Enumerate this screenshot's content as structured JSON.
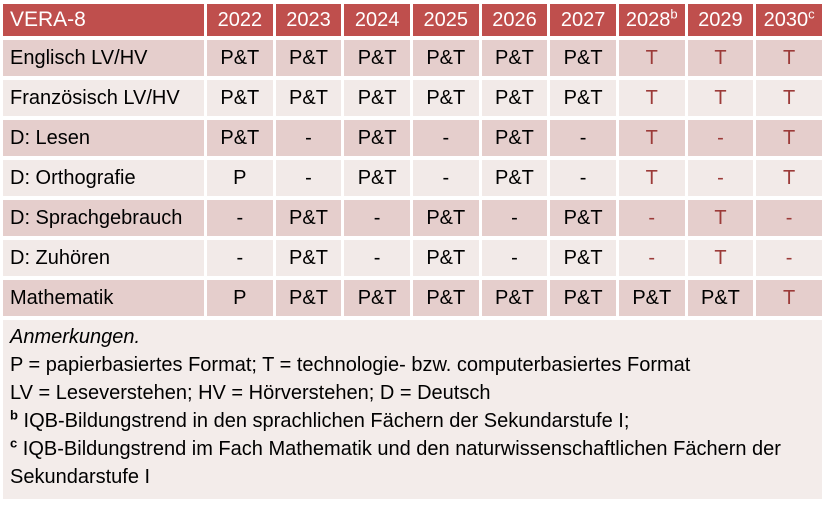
{
  "colors": {
    "header_bg": "#BF4F4D",
    "header_text": "#FFFFFF",
    "row_dark_bg": "#E5CECC",
    "row_light_bg": "#F2EAE8",
    "notes_bg": "#F3ECEA",
    "cell_text": "#000000",
    "tech_format_red": "#9C3B39"
  },
  "table": {
    "title": "VERA-8",
    "columns": [
      {
        "label": "2022",
        "sup": ""
      },
      {
        "label": "2023",
        "sup": ""
      },
      {
        "label": "2024",
        "sup": ""
      },
      {
        "label": "2025",
        "sup": ""
      },
      {
        "label": "2026",
        "sup": ""
      },
      {
        "label": "2027",
        "sup": ""
      },
      {
        "label": "2028",
        "sup": "b"
      },
      {
        "label": "2029",
        "sup": ""
      },
      {
        "label": "2030",
        "sup": "c"
      }
    ],
    "rows": [
      {
        "label": "Englisch LV/HV",
        "cells": [
          {
            "v": "P&T",
            "s": "std"
          },
          {
            "v": "P&T",
            "s": "std"
          },
          {
            "v": "P&T",
            "s": "std"
          },
          {
            "v": "P&T",
            "s": "std"
          },
          {
            "v": "P&T",
            "s": "std"
          },
          {
            "v": "P&T",
            "s": "std"
          },
          {
            "v": "T",
            "s": "tech"
          },
          {
            "v": "T",
            "s": "tech"
          },
          {
            "v": "T",
            "s": "tech"
          }
        ]
      },
      {
        "label": "Französisch LV/HV",
        "cells": [
          {
            "v": "P&T",
            "s": "std"
          },
          {
            "v": "P&T",
            "s": "std"
          },
          {
            "v": "P&T",
            "s": "std"
          },
          {
            "v": "P&T",
            "s": "std"
          },
          {
            "v": "P&T",
            "s": "std"
          },
          {
            "v": "P&T",
            "s": "std"
          },
          {
            "v": "T",
            "s": "tech"
          },
          {
            "v": "T",
            "s": "tech"
          },
          {
            "v": "T",
            "s": "tech"
          }
        ]
      },
      {
        "label": "D: Lesen",
        "cells": [
          {
            "v": "P&T",
            "s": "std"
          },
          {
            "v": "-",
            "s": "std"
          },
          {
            "v": "P&T",
            "s": "std"
          },
          {
            "v": "-",
            "s": "std"
          },
          {
            "v": "P&T",
            "s": "std"
          },
          {
            "v": "-",
            "s": "std"
          },
          {
            "v": "T",
            "s": "tech"
          },
          {
            "v": "-",
            "s": "tech"
          },
          {
            "v": "T",
            "s": "tech"
          }
        ]
      },
      {
        "label": "D: Orthografie",
        "cells": [
          {
            "v": "P",
            "s": "std"
          },
          {
            "v": "-",
            "s": "std"
          },
          {
            "v": "P&T",
            "s": "std"
          },
          {
            "v": "-",
            "s": "std"
          },
          {
            "v": "P&T",
            "s": "std"
          },
          {
            "v": "-",
            "s": "std"
          },
          {
            "v": "T",
            "s": "tech"
          },
          {
            "v": "-",
            "s": "tech"
          },
          {
            "v": "T",
            "s": "tech"
          }
        ]
      },
      {
        "label": "D: Sprachgebrauch",
        "cells": [
          {
            "v": "-",
            "s": "std"
          },
          {
            "v": "P&T",
            "s": "std"
          },
          {
            "v": "-",
            "s": "std"
          },
          {
            "v": "P&T",
            "s": "std"
          },
          {
            "v": "-",
            "s": "std"
          },
          {
            "v": "P&T",
            "s": "std"
          },
          {
            "v": "-",
            "s": "tech"
          },
          {
            "v": "T",
            "s": "tech"
          },
          {
            "v": "-",
            "s": "tech"
          }
        ]
      },
      {
        "label": "D: Zuhören",
        "cells": [
          {
            "v": "-",
            "s": "std"
          },
          {
            "v": "P&T",
            "s": "std"
          },
          {
            "v": "-",
            "s": "std"
          },
          {
            "v": "P&T",
            "s": "std"
          },
          {
            "v": "-",
            "s": "std"
          },
          {
            "v": "P&T",
            "s": "std"
          },
          {
            "v": "-",
            "s": "tech"
          },
          {
            "v": "T",
            "s": "tech"
          },
          {
            "v": "-",
            "s": "tech"
          }
        ]
      },
      {
        "label": "Mathematik",
        "cells": [
          {
            "v": "P",
            "s": "std"
          },
          {
            "v": "P&T",
            "s": "std"
          },
          {
            "v": "P&T",
            "s": "std"
          },
          {
            "v": "P&T",
            "s": "std"
          },
          {
            "v": "P&T",
            "s": "std"
          },
          {
            "v": "P&T",
            "s": "std"
          },
          {
            "v": "P&T",
            "s": "std"
          },
          {
            "v": "P&T",
            "s": "std"
          },
          {
            "v": "T",
            "s": "tech"
          }
        ]
      }
    ]
  },
  "notes": {
    "heading": "Anmerkungen.",
    "line_formats": "P = papierbasiertes Format; T = technologie- bzw. computerbasiertes Format",
    "line_abbrev": "LV = Leseverstehen; HV = Hörverstehen; D = Deutsch",
    "fn_b_sup": "b",
    "fn_b_text": " IQB-Bildungstrend in den sprachlichen Fächern der Sekundarstufe I;",
    "fn_c_sup": "c",
    "fn_c_text": " IQB-Bildungstrend im Fach Mathematik und den naturwissenschaftlichen Fächern der Sekundarstufe I"
  }
}
